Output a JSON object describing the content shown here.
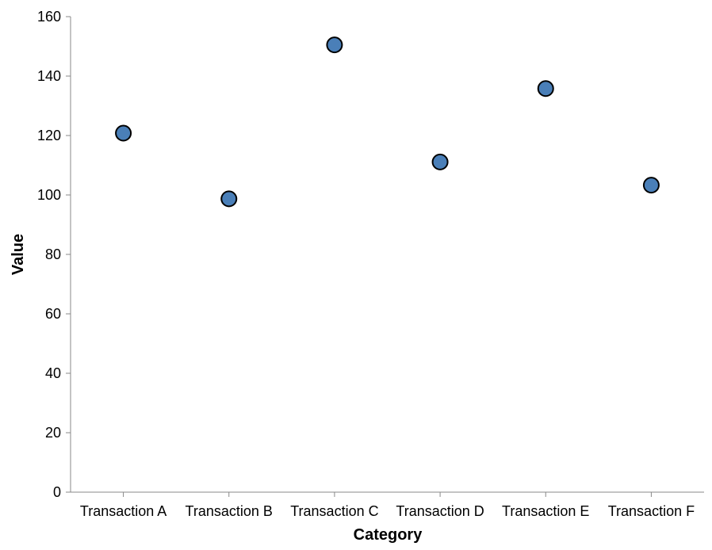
{
  "chart_data": {
    "type": "scatter",
    "xlabel": "Category",
    "ylabel": "Value",
    "categories": [
      "Transaction A",
      "Transaction B",
      "Transaction C",
      "Transaction D",
      "Transaction E",
      "Transaction F"
    ],
    "values": [
      120.8,
      98.7,
      150.5,
      111.1,
      135.8,
      103.3
    ],
    "ylim": [
      0,
      160
    ],
    "yticks": [
      "0",
      "20",
      "40",
      "60",
      "80",
      "100",
      "120",
      "140",
      "160"
    ],
    "grid": false,
    "point_color": "#4a7fb8"
  }
}
